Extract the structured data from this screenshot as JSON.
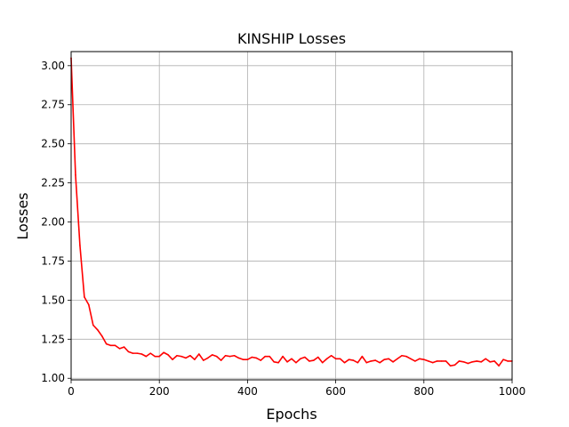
{
  "chart_data": {
    "type": "line",
    "title": "KINSHIP Losses",
    "xlabel": "Epochs",
    "ylabel": "Losses",
    "xlim": [
      0,
      1000
    ],
    "ylim": [
      0.99,
      3.09
    ],
    "x_ticks": [
      0,
      200,
      400,
      600,
      800,
      1000
    ],
    "x_tick_labels": [
      "0",
      "200",
      "400",
      "600",
      "800",
      "1000"
    ],
    "y_ticks": [
      1.0,
      1.25,
      1.5,
      1.75,
      2.0,
      2.25,
      2.5,
      2.75,
      3.0
    ],
    "y_tick_labels": [
      "1.00",
      "1.25",
      "1.50",
      "1.75",
      "2.00",
      "2.25",
      "2.50",
      "2.75",
      "3.00"
    ],
    "grid": true,
    "series": [
      {
        "color": "#ff0000",
        "x": [
          0,
          10,
          20,
          30,
          40,
          50,
          60,
          70,
          80,
          90,
          100,
          110,
          120,
          130,
          140,
          150,
          160,
          170,
          180,
          190,
          200,
          210,
          220,
          230,
          240,
          250,
          260,
          270,
          280,
          290,
          300,
          310,
          320,
          330,
          340,
          350,
          360,
          370,
          380,
          390,
          400,
          410,
          420,
          430,
          440,
          450,
          460,
          470,
          480,
          490,
          500,
          510,
          520,
          530,
          540,
          550,
          560,
          570,
          580,
          590,
          600,
          610,
          620,
          630,
          640,
          650,
          660,
          670,
          680,
          690,
          700,
          710,
          720,
          730,
          740,
          750,
          760,
          770,
          780,
          790,
          800,
          810,
          820,
          830,
          840,
          850,
          860,
          870,
          880,
          890,
          900,
          910,
          920,
          930,
          940,
          950,
          960,
          970,
          980,
          990,
          1000
        ],
        "values": [
          3.05,
          2.3,
          1.85,
          1.52,
          1.47,
          1.34,
          1.31,
          1.27,
          1.22,
          1.21,
          1.21,
          1.19,
          1.2,
          1.17,
          1.16,
          1.16,
          1.155,
          1.14,
          1.16,
          1.14,
          1.14,
          1.165,
          1.15,
          1.12,
          1.145,
          1.14,
          1.13,
          1.145,
          1.12,
          1.155,
          1.115,
          1.13,
          1.15,
          1.14,
          1.115,
          1.145,
          1.14,
          1.145,
          1.13,
          1.12,
          1.12,
          1.135,
          1.13,
          1.115,
          1.14,
          1.14,
          1.105,
          1.1,
          1.14,
          1.105,
          1.125,
          1.1,
          1.125,
          1.135,
          1.11,
          1.115,
          1.135,
          1.1,
          1.125,
          1.145,
          1.125,
          1.125,
          1.1,
          1.12,
          1.115,
          1.1,
          1.14,
          1.1,
          1.11,
          1.115,
          1.1,
          1.12,
          1.125,
          1.105,
          1.125,
          1.145,
          1.14,
          1.125,
          1.11,
          1.125,
          1.12,
          1.11,
          1.1,
          1.11,
          1.11,
          1.11,
          1.08,
          1.085,
          1.11,
          1.105,
          1.095,
          1.105,
          1.11,
          1.105,
          1.125,
          1.105,
          1.11,
          1.08,
          1.12,
          1.11,
          1.11
        ]
      }
    ]
  }
}
